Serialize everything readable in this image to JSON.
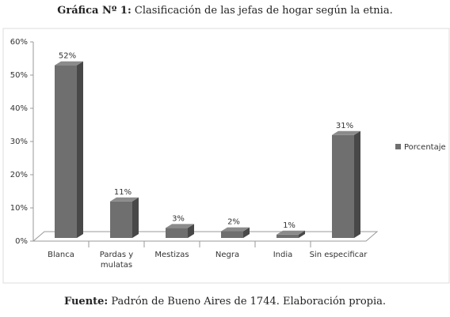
{
  "chart_data": {
    "type": "bar3d",
    "title_label": "Gráfica Nº 1:",
    "title": "Clasificación de las jefas de hogar según la etnia.",
    "categories": [
      "Blanca",
      "Pardas y mulatas",
      "Mestizas",
      "Negra",
      "India",
      "Sin especificar"
    ],
    "series": [
      {
        "name": "Porcentaje",
        "color": "#6f6f6f",
        "values": [
          52,
          11,
          3,
          2,
          1,
          31
        ],
        "value_labels": [
          "52%",
          "11%",
          "3%",
          "2%",
          "1%",
          "31%"
        ]
      }
    ],
    "ylim": [
      0,
      60
    ],
    "yticks": [
      {
        "value": 0,
        "label": "0%"
      },
      {
        "value": 10,
        "label": "10%"
      },
      {
        "value": 20,
        "label": "20%"
      },
      {
        "value": 30,
        "label": "30%"
      },
      {
        "value": 40,
        "label": "40%"
      },
      {
        "value": 50,
        "label": "50%"
      },
      {
        "value": 60,
        "label": "60%"
      }
    ],
    "legend": "right",
    "source_label": "Fuente:",
    "source": "Padrón de Bueno Aires de 1744. Elaboración propia."
  }
}
